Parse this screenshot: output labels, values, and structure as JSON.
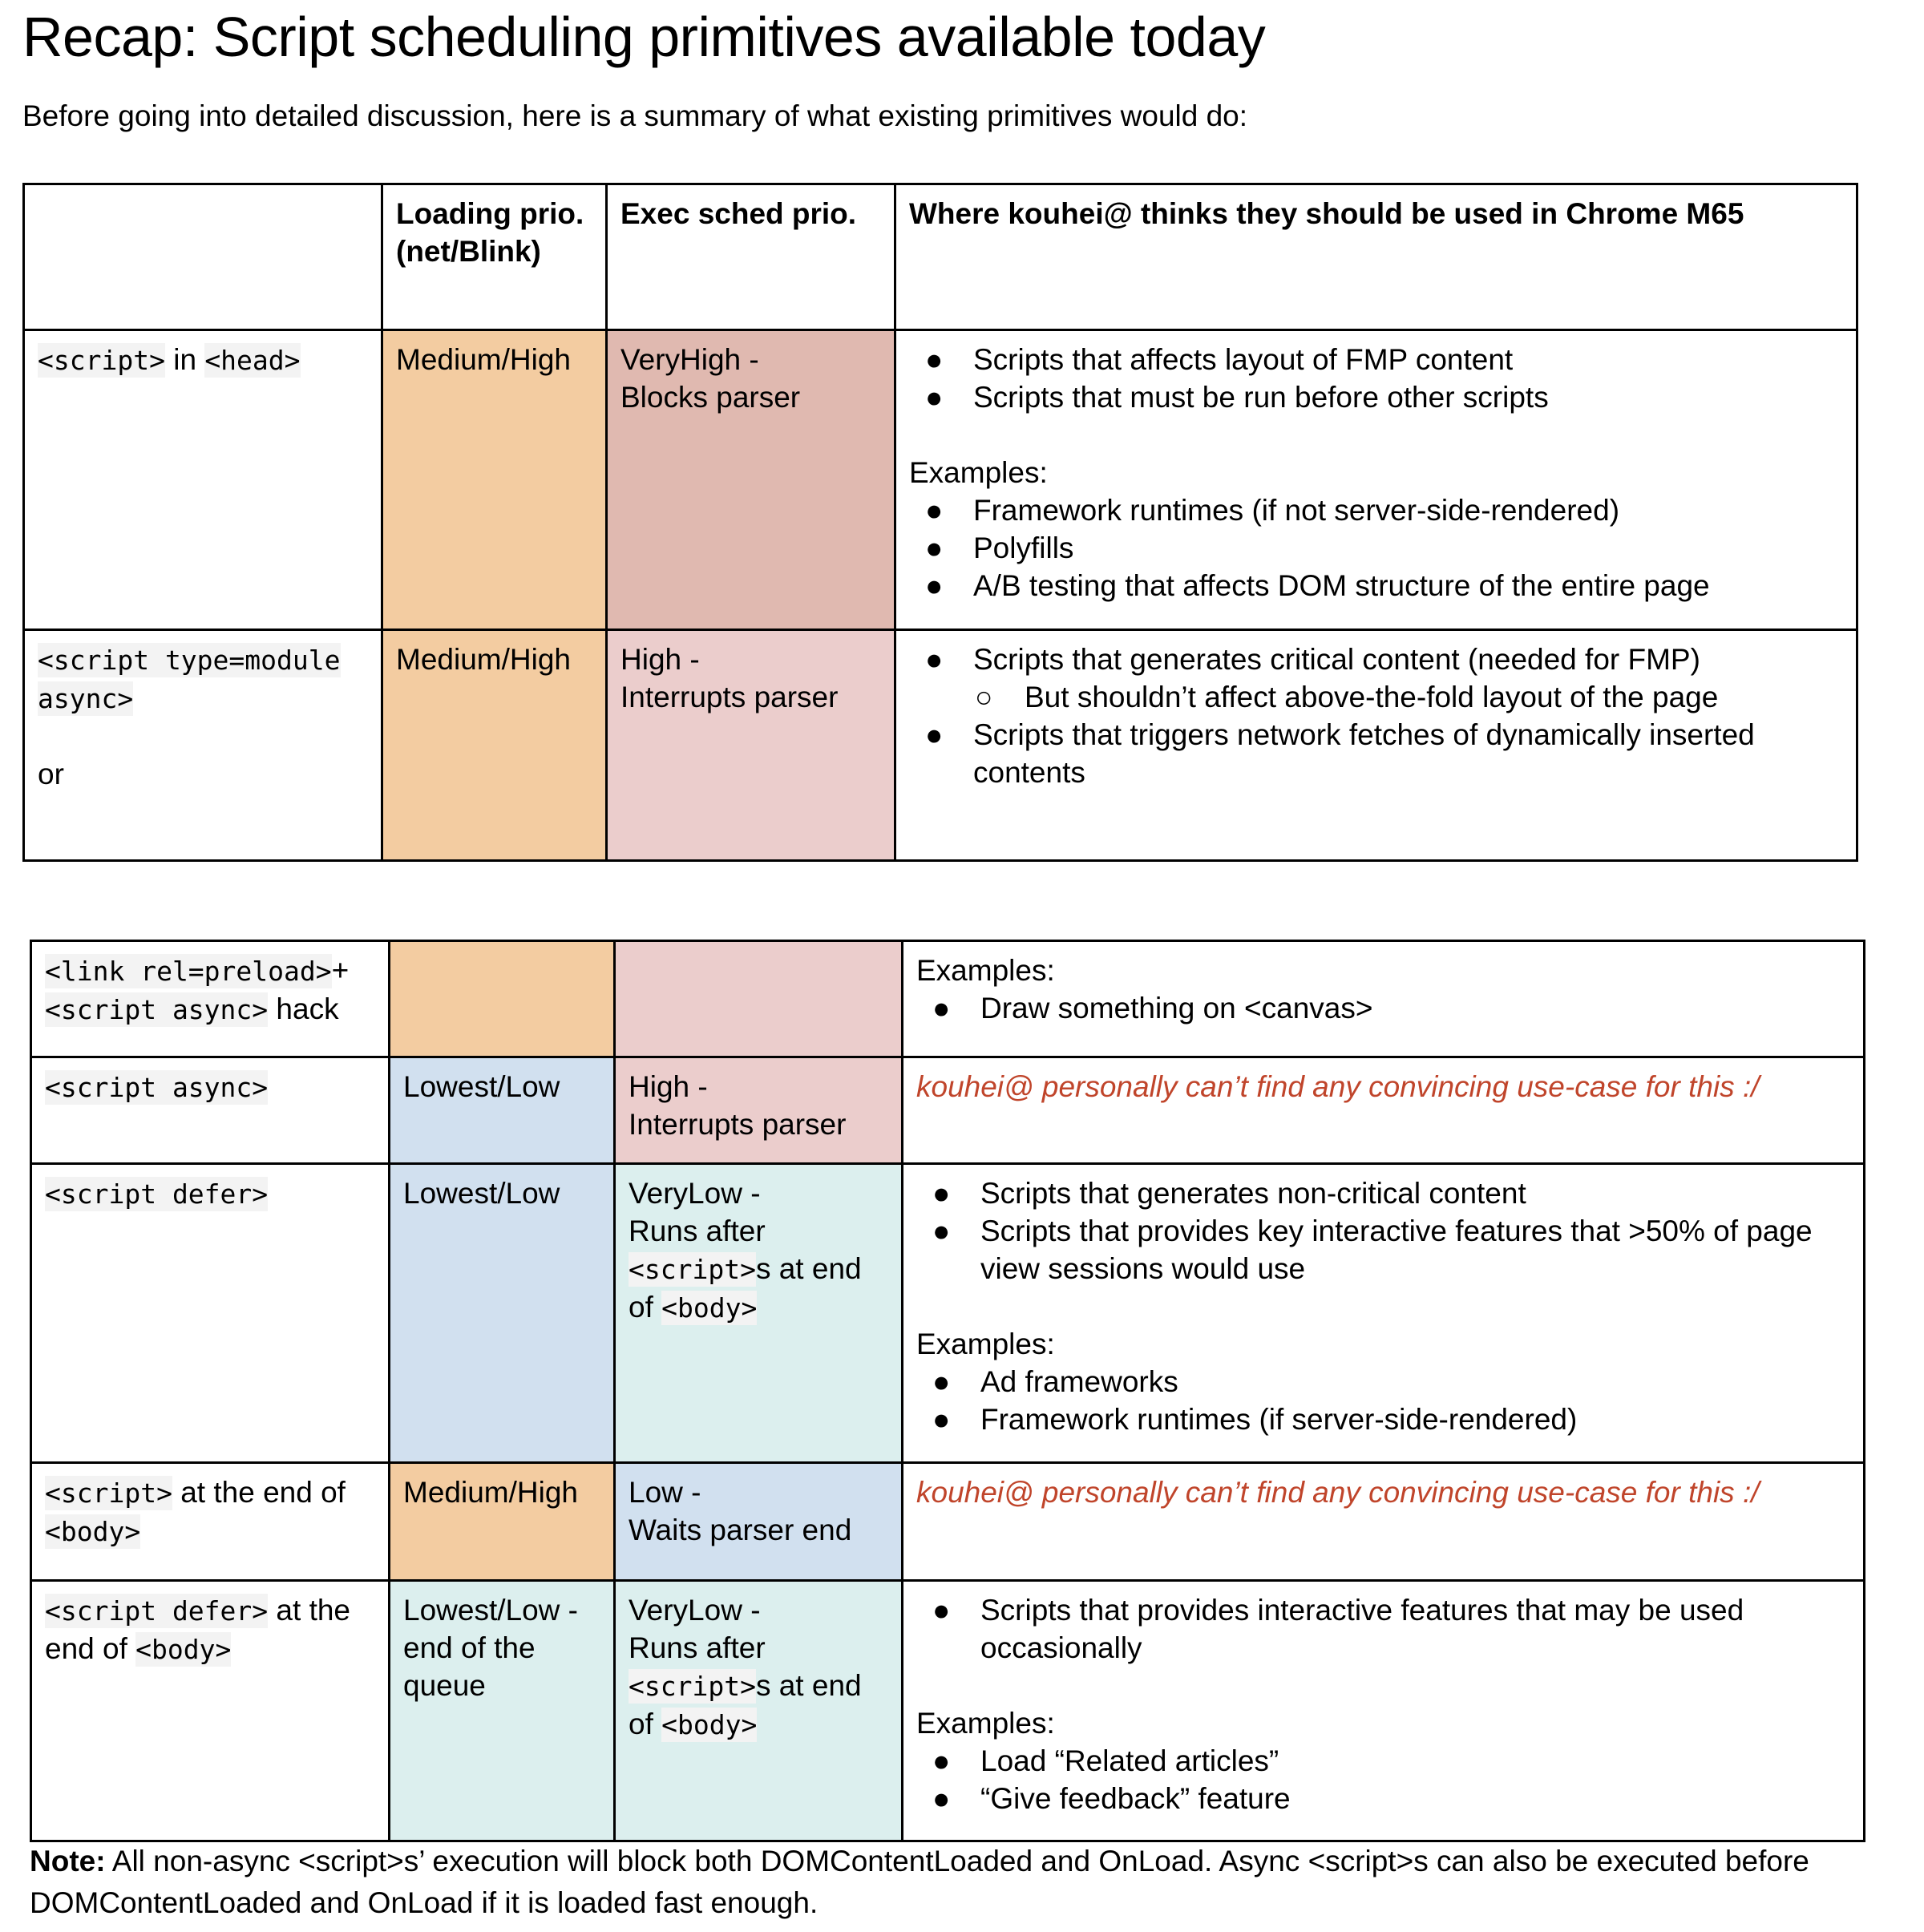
{
  "title": "Recap: Script scheduling primitives available today",
  "intro": "Before going into detailed discussion, here is a summary of what existing primitives would do:",
  "colors": {
    "orange": "#f3cca1",
    "dark_pink": "#e0b9b0",
    "light_pink": "#ebcdcc",
    "blue": "#d1e0ef",
    "teal": "#dcefee",
    "red_text": "#c0452b",
    "code_bg": "#f3f3f3"
  },
  "headers": [
    "",
    "Loading prio. (net/Blink)",
    "Exec sched prio.",
    "Where kouhei@ thinks they should be used in Chrome M65"
  ],
  "table1": [
    {
      "label": [
        {
          "t": "<script>",
          "code": true
        },
        {
          "t": " in "
        },
        {
          "t": "<head>",
          "code": true
        }
      ],
      "loading": "Medium/High",
      "loading_color": "orange",
      "exec": [
        [
          {
            "t": "VeryHigh -"
          }
        ],
        [
          {
            "t": "Blocks parser"
          }
        ]
      ],
      "exec_color": "dark_pink",
      "usage": [
        {
          "type": "bullet",
          "t": "Scripts that affects layout of FMP content"
        },
        {
          "type": "bullet",
          "t": "Scripts that must be run before other scripts"
        },
        {
          "type": "gap"
        },
        {
          "type": "p",
          "t": "Examples:"
        },
        {
          "type": "bullet",
          "t": "Framework runtimes (if not server-side-rendered)"
        },
        {
          "type": "bullet",
          "t": "Polyfills"
        },
        {
          "type": "bullet",
          "t": "A/B testing that affects DOM structure of the entire page"
        }
      ]
    },
    {
      "label": [
        {
          "t": "<script type=module async>",
          "code": true
        },
        {
          "br": true
        },
        {
          "br": true
        },
        {
          "t": "or"
        }
      ],
      "loading": "Medium/High",
      "loading_color": "orange",
      "exec": [
        [
          {
            "t": "High -"
          }
        ],
        [
          {
            "t": "Interrupts parser"
          }
        ]
      ],
      "exec_color": "light_pink",
      "usage": [
        {
          "type": "bullet",
          "t": "Scripts that generates critical content (needed for FMP)"
        },
        {
          "type": "sub",
          "t": "But shouldn’t affect above-the-fold layout of the page"
        },
        {
          "type": "bullet",
          "t": "Scripts that triggers network fetches of dynamically inserted contents"
        }
      ]
    }
  ],
  "table2": [
    {
      "label": [
        {
          "t": "<link rel=preload>",
          "code": true
        },
        {
          "t": "+"
        },
        {
          "br": true
        },
        {
          "t": "<script async>",
          "code": true
        },
        {
          "t": " hack"
        }
      ],
      "loading": "",
      "loading_color": "orange",
      "exec": [],
      "exec_color": "light_pink",
      "usage": [
        {
          "type": "p",
          "t": "Examples:"
        },
        {
          "type": "bullet",
          "t": "Draw something on <canvas>"
        }
      ]
    },
    {
      "label": [
        {
          "t": "<script async>",
          "code": true
        }
      ],
      "loading": "Lowest/Low",
      "loading_color": "blue",
      "exec": [
        [
          {
            "t": "High -"
          }
        ],
        [
          {
            "t": "Interrupts parser"
          }
        ]
      ],
      "exec_color": "light_pink",
      "usage": [
        {
          "type": "red",
          "t": "kouhei@ personally can’t find any convincing use-case for this :/"
        }
      ]
    },
    {
      "label": [
        {
          "t": "<script defer>",
          "code": true
        }
      ],
      "loading": "Lowest/Low",
      "loading_color": "blue",
      "exec": [
        [
          {
            "t": "VeryLow -"
          }
        ],
        [
          {
            "t": "Runs after"
          }
        ],
        [
          {
            "t": "<script>",
            "code": true
          },
          {
            "t": "s at end"
          }
        ],
        [
          {
            "t": "of "
          },
          {
            "t": "<body>",
            "code": true
          }
        ]
      ],
      "exec_color": "teal",
      "usage": [
        {
          "type": "bullet",
          "t": "Scripts that generates non-critical content"
        },
        {
          "type": "bullet",
          "t": "Scripts that provides key interactive features that >50% of page view sessions would use"
        },
        {
          "type": "gap"
        },
        {
          "type": "p",
          "t": "Examples:"
        },
        {
          "type": "bullet",
          "t": "Ad frameworks"
        },
        {
          "type": "bullet",
          "t": "Framework runtimes (if server-side-rendered)"
        }
      ]
    },
    {
      "label": [
        {
          "t": "<script>",
          "code": true
        },
        {
          "t": " at the end of "
        },
        {
          "t": "<body>",
          "code": true
        }
      ],
      "loading": "Medium/High",
      "loading_color": "orange",
      "exec": [
        [
          {
            "t": "Low -"
          }
        ],
        [
          {
            "t": "Waits parser end"
          }
        ]
      ],
      "exec_color": "blue",
      "usage": [
        {
          "type": "red",
          "t": "kouhei@ personally can’t find any convincing use-case for this :/"
        }
      ]
    },
    {
      "label": [
        {
          "t": "<script defer>",
          "code": true
        },
        {
          "t": " at the end of "
        },
        {
          "t": "<body>",
          "code": true
        }
      ],
      "loading": "Lowest/Low - end of the queue",
      "loading_color": "teal",
      "exec": [
        [
          {
            "t": "VeryLow -"
          }
        ],
        [
          {
            "t": "Runs after"
          }
        ],
        [
          {
            "t": "<script>",
            "code": true
          },
          {
            "t": "s at end"
          }
        ],
        [
          {
            "t": "of "
          },
          {
            "t": "<body>",
            "code": true
          }
        ]
      ],
      "exec_color": "teal",
      "usage": [
        {
          "type": "bullet",
          "t": "Scripts that provides interactive features that may be used occasionally"
        },
        {
          "type": "gap"
        },
        {
          "type": "p",
          "t": "Examples:"
        },
        {
          "type": "bullet",
          "t": "Load “Related articles”"
        },
        {
          "type": "bullet",
          "t": "“Give feedback” feature"
        }
      ]
    }
  ],
  "note": {
    "label": "Note:",
    "text": " All non-async <script>s’ execution will block both DOMContentLoaded and OnLoad. Async <script>s can also be executed before DOMContentLoaded and OnLoad if it is loaded fast enough."
  },
  "bullet_glyph": "●",
  "sub_bullet_glyph": "○"
}
